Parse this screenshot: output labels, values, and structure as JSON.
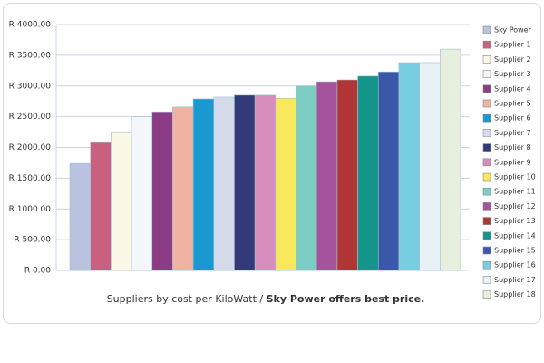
{
  "chart_data": {
    "type": "bar",
    "caption": "Suppliers by cost per KiloWatt / ",
    "caption_bold": "Sky Power offers best price.",
    "ylim": [
      0,
      4000
    ],
    "yticks": [
      {
        "value": 0,
        "label": "R 0.00"
      },
      {
        "value": 500,
        "label": "R 500.00"
      },
      {
        "value": 1000,
        "label": "R 1000.00"
      },
      {
        "value": 1500,
        "label": "R 1500.00"
      },
      {
        "value": 2000,
        "label": "R 2000.00"
      },
      {
        "value": 2500,
        "label": "R 2500.00"
      },
      {
        "value": 3000,
        "label": "R 3000.00"
      },
      {
        "value": 3500,
        "label": "R 3500.00"
      },
      {
        "value": 4000,
        "label": "R 4000.00"
      }
    ],
    "grid": true,
    "legend": "right",
    "series": [
      {
        "name": "Sky Power",
        "color": "#b9c3e0",
        "values": [
          1740
        ]
      },
      {
        "name": "Supplier 1",
        "color": "#c9607f",
        "values": [
          2080
        ]
      },
      {
        "name": "Supplier 2",
        "color": "#fbf8e6",
        "values": [
          2240
        ]
      },
      {
        "name": "Supplier 3",
        "color": "#f4f7fa",
        "values": [
          2500
        ]
      },
      {
        "name": "Supplier 4",
        "color": "#8c3c84",
        "values": [
          2580
        ]
      },
      {
        "name": "Supplier 5",
        "color": "#f0b3a3",
        "values": [
          2660
        ]
      },
      {
        "name": "Supplier 6",
        "color": "#1999cf",
        "values": [
          2790
        ]
      },
      {
        "name": "Supplier 7",
        "color": "#d6dbec",
        "values": [
          2820
        ]
      },
      {
        "name": "Supplier 8",
        "color": "#323a78",
        "values": [
          2850
        ]
      },
      {
        "name": "Supplier 9",
        "color": "#d88ebd",
        "values": [
          2850
        ]
      },
      {
        "name": "Supplier 10",
        "color": "#f7e85c",
        "values": [
          2800
        ]
      },
      {
        "name": "Supplier 11",
        "color": "#7ecdc4",
        "values": [
          3000
        ]
      },
      {
        "name": "Supplier 12",
        "color": "#a5549c",
        "values": [
          3070
        ]
      },
      {
        "name": "Supplier 13",
        "color": "#b03535",
        "values": [
          3100
        ]
      },
      {
        "name": "Supplier 14",
        "color": "#14958a",
        "values": [
          3160
        ]
      },
      {
        "name": "Supplier 15",
        "color": "#3b58a8",
        "values": [
          3230
        ]
      },
      {
        "name": "Supplier 16",
        "color": "#79cde0",
        "values": [
          3380
        ]
      },
      {
        "name": "Supplier 17",
        "color": "#e8f2f6",
        "values": [
          3380
        ]
      },
      {
        "name": "Supplier 18",
        "color": "#e6f0dc",
        "values": [
          3600
        ]
      }
    ]
  }
}
